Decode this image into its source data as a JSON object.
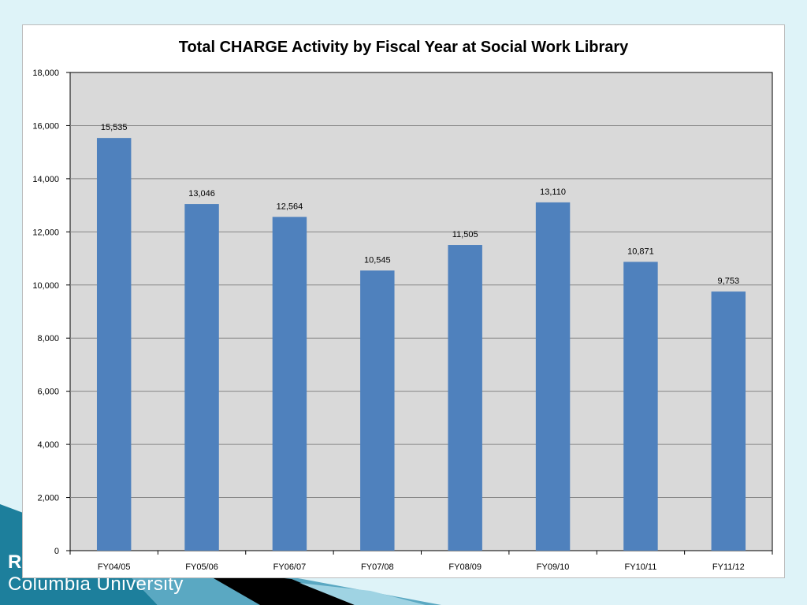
{
  "slide": {
    "footer_partial": "R",
    "footer_text": "Columbia University",
    "bg_color": "#def3f8",
    "band_color": "#1d7f9c",
    "accent_color": "#000000"
  },
  "chart_data": {
    "type": "bar",
    "title": "Total CHARGE Activity by Fiscal Year at Social Work Library",
    "categories": [
      "FY04/05",
      "FY05/06",
      "FY06/07",
      "FY07/08",
      "FY08/09",
      "FY09/10",
      "FY10/11",
      "FY11/12"
    ],
    "values": [
      15535,
      13046,
      12564,
      10545,
      11505,
      13110,
      10871,
      9753
    ],
    "data_labels": [
      "15,535",
      "13,046",
      "12,564",
      "10,545",
      "11,505",
      "13,110",
      "10,871",
      "9,753"
    ],
    "xlabel": "",
    "ylabel": "",
    "ylim": [
      0,
      18000
    ],
    "y_ticks": [
      0,
      2000,
      4000,
      6000,
      8000,
      10000,
      12000,
      14000,
      16000,
      18000
    ],
    "y_tick_labels": [
      "0",
      "2,000",
      "4,000",
      "6,000",
      "8,000",
      "10,000",
      "12,000",
      "14,000",
      "16,000",
      "18,000"
    ],
    "grid": true,
    "legend": "none",
    "bar_color": "#4f81bd",
    "plot_bg": "#d9d9d9",
    "gridline_color": "#868686"
  }
}
